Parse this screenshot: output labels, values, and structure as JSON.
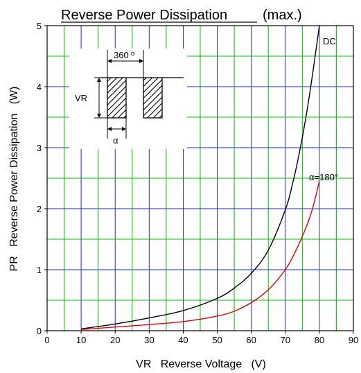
{
  "chart_data": {
    "type": "line",
    "title": "Reverse Power Dissipation",
    "title_suffix": "(max.)",
    "xlabel": "VR   Reverse Voltage   (V)",
    "ylabel": "PR   Reverse Power Dissipation   (W)",
    "xlim": [
      0,
      90
    ],
    "ylim": [
      0,
      5
    ],
    "x_ticks": [
      "0",
      "10",
      "20",
      "30",
      "40",
      "50",
      "60",
      "70",
      "80",
      "90"
    ],
    "y_ticks": [
      "0",
      "1",
      "2",
      "3",
      "4",
      "5"
    ],
    "grid": true,
    "grid_colors": {
      "major": "#1a2fbf",
      "minor": "#00c000"
    },
    "series": [
      {
        "name": "DC",
        "color": "#000000",
        "points": [
          [
            10,
            0.03
          ],
          [
            20,
            0.11
          ],
          [
            30,
            0.21
          ],
          [
            40,
            0.33
          ],
          [
            50,
            0.53
          ],
          [
            55,
            0.7
          ],
          [
            60,
            0.94
          ],
          [
            65,
            1.32
          ],
          [
            70,
            1.98
          ],
          [
            72,
            2.38
          ],
          [
            74,
            2.88
          ],
          [
            76,
            3.48
          ],
          [
            78,
            4.2
          ],
          [
            80,
            5.0
          ]
        ]
      },
      {
        "name": "α=180°",
        "color": "#e00000",
        "points": [
          [
            10,
            0.02
          ],
          [
            20,
            0.06
          ],
          [
            30,
            0.1
          ],
          [
            40,
            0.15
          ],
          [
            50,
            0.24
          ],
          [
            55,
            0.32
          ],
          [
            60,
            0.46
          ],
          [
            65,
            0.67
          ],
          [
            70,
            1.0
          ],
          [
            73,
            1.3
          ],
          [
            76,
            1.68
          ],
          [
            78,
            2.0
          ],
          [
            80,
            2.45
          ]
        ]
      }
    ],
    "inset": {
      "period_label": "360 º",
      "amplitude_label": "VR",
      "angle_label": "α"
    }
  }
}
